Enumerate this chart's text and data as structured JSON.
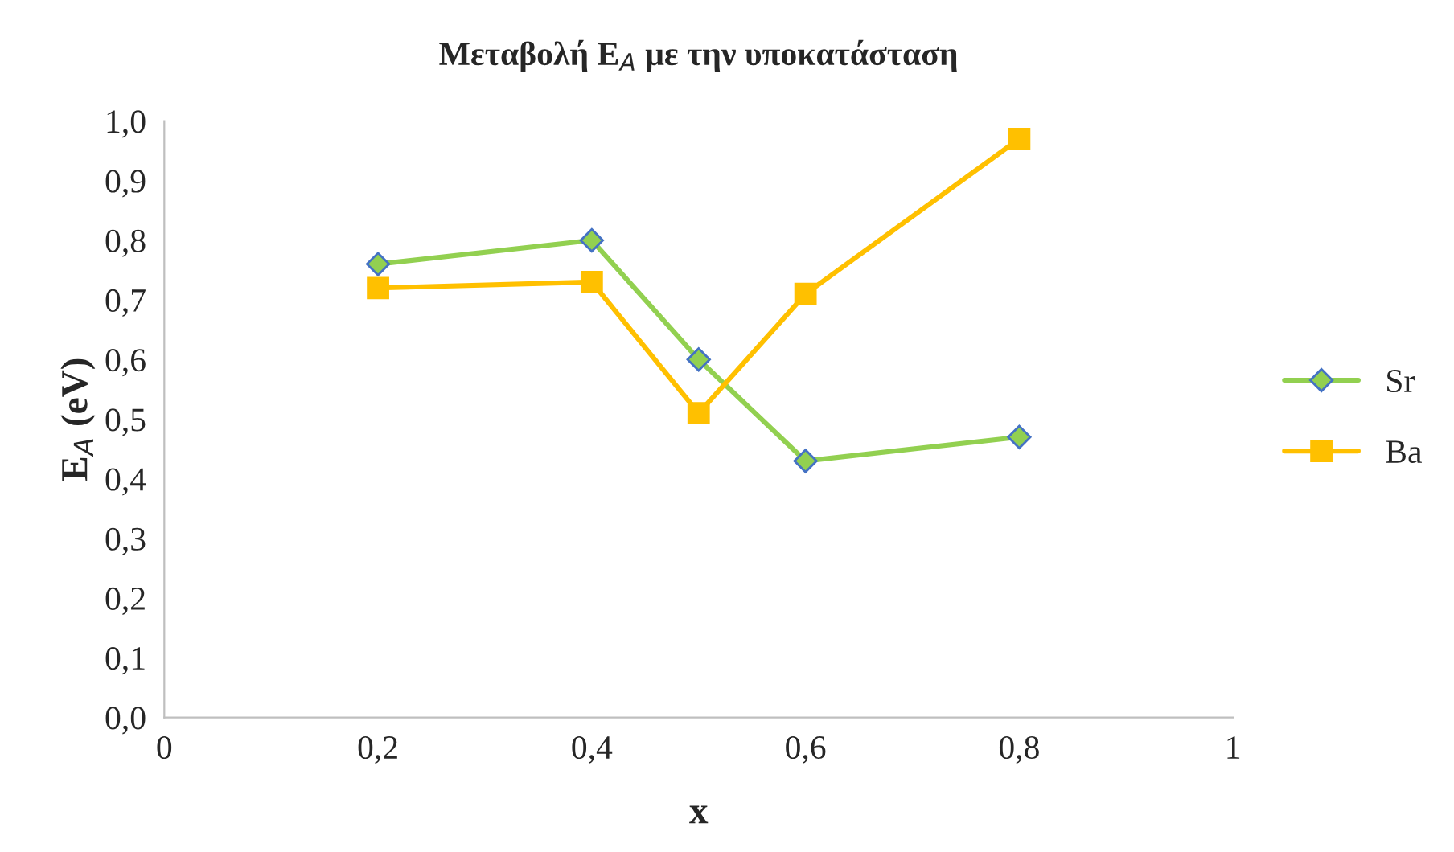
{
  "chart_data": {
    "type": "line",
    "title": "Μεταβολή E$_{A}$ με την υποκατάσταση",
    "xlabel": "x",
    "ylabel": "E$_{A}$ (eV)",
    "series": [
      {
        "name": "Sr",
        "color": "#92d050",
        "marker": "diamond",
        "x": [
          0.2,
          0.4,
          0.5,
          0.6,
          0.8
        ],
        "values": [
          0.76,
          0.8,
          0.6,
          0.43,
          0.47
        ]
      },
      {
        "name": "Ba",
        "color": "#ffc000",
        "marker": "square",
        "x": [
          0.2,
          0.4,
          0.5,
          0.6,
          0.8
        ],
        "values": [
          0.72,
          0.73,
          0.51,
          0.71,
          0.97
        ]
      }
    ],
    "xlim": [
      0,
      1
    ],
    "xticks": [
      0,
      {
        "value": 0.2,
        "label": "0,2"
      },
      {
        "value": 0.4,
        "label": "0,4"
      },
      {
        "value": 0.6,
        "label": "0,6"
      },
      {
        "value": 0.8,
        "label": "0,8"
      },
      1
    ],
    "ylim": [
      0,
      1
    ],
    "yticks": [
      {
        "value": 0,
        "label": "0,0"
      },
      {
        "value": 0.1,
        "label": "0,1"
      },
      {
        "value": 0.2,
        "label": "0,2"
      },
      {
        "value": 0.3,
        "label": "0,3"
      },
      {
        "value": 0.4,
        "label": "0,4"
      },
      {
        "value": 0.5,
        "label": "0,5"
      },
      {
        "value": 0.6,
        "label": "0,6"
      },
      {
        "value": 0.7,
        "label": "0,7"
      },
      {
        "value": 0.8,
        "label": "0,8"
      },
      {
        "value": 0.9,
        "label": "0,9"
      },
      {
        "value": 1,
        "label": "1,0"
      }
    ],
    "grid": false,
    "legend": "right",
    "line_style": "solid"
  }
}
